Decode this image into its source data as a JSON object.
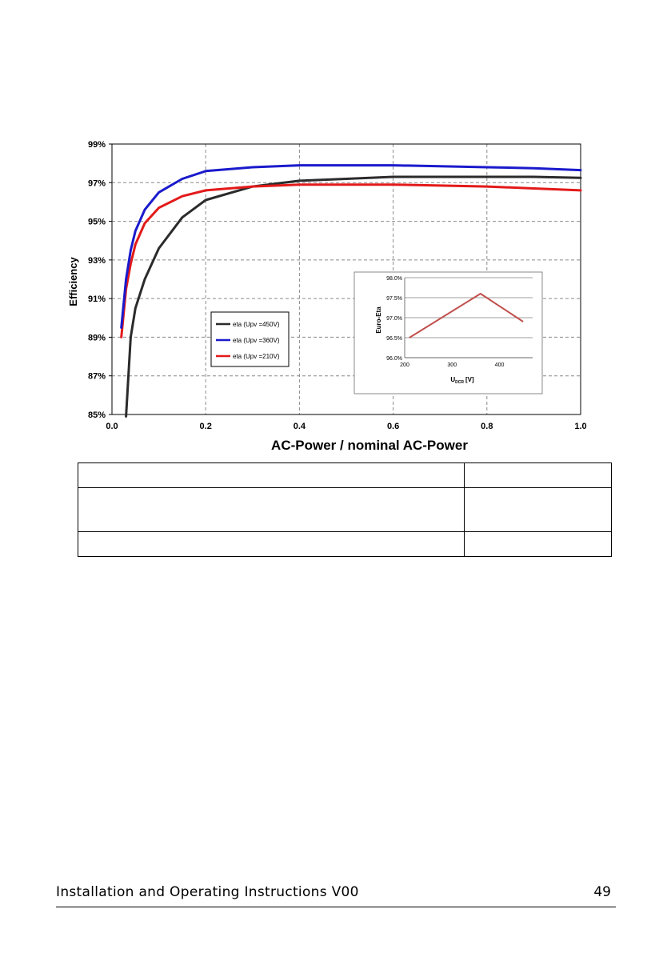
{
  "chart_data": [
    {
      "type": "line",
      "xlabel": "AC-Power / nominal AC-Power",
      "ylabel": "Efficiency",
      "xlim": [
        0.0,
        1.0
      ],
      "ylim": [
        85,
        99
      ],
      "grid": true,
      "legend_position": "center-left",
      "x_ticks": [
        "0.0",
        "0.2",
        "0.4",
        "0.6",
        "0.8",
        "1.0"
      ],
      "y_ticks": [
        "85%",
        "87%",
        "89%",
        "91%",
        "93%",
        "95%",
        "97%",
        "99%"
      ],
      "x": [
        0.02,
        0.03,
        0.04,
        0.05,
        0.07,
        0.1,
        0.15,
        0.2,
        0.3,
        0.4,
        0.5,
        0.6,
        0.7,
        0.8,
        0.9,
        1.0
      ],
      "series": [
        {
          "name": "eta (Upv =450V)",
          "color": "#2b2b2b",
          "values": [
            null,
            84.9,
            89.0,
            90.5,
            92.0,
            93.6,
            95.2,
            96.1,
            96.8,
            97.1,
            97.2,
            97.3,
            97.3,
            97.3,
            97.3,
            97.25
          ]
        },
        {
          "name": "eta (Upv =360V)",
          "color": "#1a1acc",
          "values": [
            89.5,
            92.0,
            93.5,
            94.5,
            95.6,
            96.5,
            97.2,
            97.6,
            97.8,
            97.9,
            97.9,
            97.9,
            97.85,
            97.8,
            97.75,
            97.65
          ]
        },
        {
          "name": "eta (Upv =210V)",
          "color": "#e31a1a",
          "values": [
            89.0,
            91.5,
            92.8,
            93.8,
            94.9,
            95.7,
            96.3,
            96.6,
            96.8,
            96.9,
            96.9,
            96.9,
            96.85,
            96.8,
            96.7,
            96.6
          ]
        }
      ]
    },
    {
      "type": "line",
      "xlabel_main": "U",
      "xlabel_sub": "DCR",
      "xlabel_unit": "[V]",
      "ylabel": "Euro-Eta",
      "xlim": [
        200,
        470
      ],
      "ylim": [
        96.0,
        98.0
      ],
      "grid": true,
      "x_ticks": [
        "200",
        "300",
        "400"
      ],
      "y_ticks": [
        "96.0%",
        "96.5%",
        "97.0%",
        "97.5%",
        "98.0%"
      ],
      "x": [
        210,
        360,
        450
      ],
      "series": [
        {
          "color": "#c0504d",
          "values": [
            96.5,
            97.6,
            96.9
          ]
        }
      ]
    }
  ],
  "table": {
    "rows": [
      {
        "label": "",
        "value": ""
      },
      {
        "label": "",
        "value": ""
      },
      {
        "label": "",
        "value": ""
      }
    ]
  },
  "footer": {
    "title": "Installation and Operating Instructions V00",
    "page": "49"
  }
}
